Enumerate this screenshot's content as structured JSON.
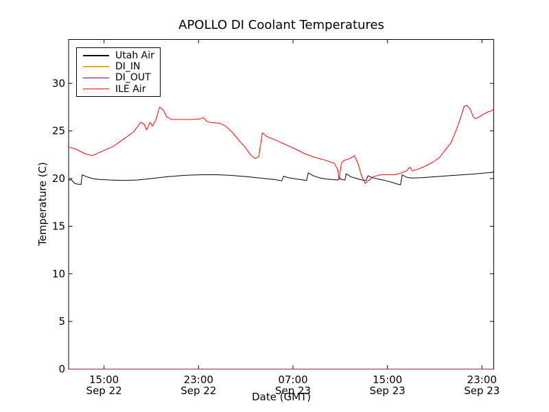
{
  "chart_data": {
    "type": "line",
    "title": "APOLLO DI Coolant Temperatures",
    "xlabel": "Date (GMT)",
    "ylabel": "Temperature (C)",
    "x_unit": "hours since Sep 22 12:00 GMT",
    "xlim": [
      0,
      36
    ],
    "ylim": [
      0,
      34.6
    ],
    "grid": false,
    "legend_position": "upper left",
    "frame_color": "#000000",
    "background": "#ffffff",
    "yticks": [
      0,
      5,
      10,
      15,
      20,
      25,
      30
    ],
    "xticks": [
      {
        "hour": 3,
        "time": "15:00",
        "date": "Sep 22"
      },
      {
        "hour": 11,
        "time": "23:00",
        "date": "Sep 22"
      },
      {
        "hour": 19,
        "time": "07:00",
        "date": "Sep 23"
      },
      {
        "hour": 27,
        "time": "15:00",
        "date": "Sep 23"
      },
      {
        "hour": 35,
        "time": "23:00",
        "date": "Sep 23"
      }
    ],
    "series": [
      {
        "name": "Utah Air",
        "color": "#000000",
        "opacity": 1,
        "points": [
          [
            0,
            19.8
          ],
          [
            0.2,
            19.9
          ],
          [
            0.5,
            19.5
          ],
          [
            0.8,
            19.4
          ],
          [
            1.05,
            19.4
          ],
          [
            1.15,
            20.4
          ],
          [
            1.5,
            20.2
          ],
          [
            2,
            20
          ],
          [
            2.6,
            19.9
          ],
          [
            3.5,
            19.85
          ],
          [
            4.6,
            19.8
          ],
          [
            5.8,
            19.85
          ],
          [
            7,
            20
          ],
          [
            8.4,
            20.2
          ],
          [
            9.9,
            20.35
          ],
          [
            11.3,
            20.4
          ],
          [
            12.5,
            20.4
          ],
          [
            13.6,
            20.35
          ],
          [
            15.1,
            20.2
          ],
          [
            16.6,
            20
          ],
          [
            17.4,
            19.9
          ],
          [
            17.9,
            19.8
          ],
          [
            18.05,
            19.75
          ],
          [
            18.2,
            20.25
          ],
          [
            18.6,
            20.1
          ],
          [
            19.3,
            19.95
          ],
          [
            19.9,
            19.85
          ],
          [
            20.15,
            19.8
          ],
          [
            20.3,
            20.6
          ],
          [
            20.7,
            20.3
          ],
          [
            21.2,
            20.1
          ],
          [
            21.8,
            19.95
          ],
          [
            22.3,
            19.9
          ],
          [
            22.75,
            19.85
          ],
          [
            23,
            20
          ],
          [
            23.15,
            19.9
          ],
          [
            23.4,
            19.85
          ],
          [
            23.5,
            20.5
          ],
          [
            23.9,
            20.2
          ],
          [
            24.4,
            20
          ],
          [
            24.85,
            19.85
          ],
          [
            25.2,
            19.8
          ],
          [
            25.35,
            20.3
          ],
          [
            25.7,
            20.1
          ],
          [
            26.2,
            19.95
          ],
          [
            26.8,
            19.8
          ],
          [
            27.4,
            19.6
          ],
          [
            27.9,
            19.4
          ],
          [
            28.1,
            19.35
          ],
          [
            28.25,
            20.4
          ],
          [
            28.6,
            20.15
          ],
          [
            29,
            20.05
          ],
          [
            29.9,
            20.1
          ],
          [
            31.1,
            20.2
          ],
          [
            32.2,
            20.3
          ],
          [
            33.4,
            20.4
          ],
          [
            34.5,
            20.5
          ],
          [
            35.4,
            20.6
          ],
          [
            35.9,
            20.65
          ],
          [
            36,
            20.8
          ]
        ]
      },
      {
        "name": "DI_IN",
        "color": "#ffa500",
        "opacity": 0.55,
        "points": [
          [
            0,
            0
          ],
          [
            36,
            0
          ]
        ]
      },
      {
        "name": "DI_OUT",
        "color": "#800080",
        "opacity": 0.55,
        "points": [
          [
            0,
            0
          ],
          [
            36,
            0
          ]
        ]
      },
      {
        "name": "ILE Air",
        "color": "#ff0000",
        "opacity": 1,
        "points": [
          [
            0,
            23.3
          ],
          [
            0.6,
            23.1
          ],
          [
            1.4,
            22.6
          ],
          [
            2,
            22.4
          ],
          [
            2.9,
            22.9
          ],
          [
            3.8,
            23.4
          ],
          [
            4.6,
            24.1
          ],
          [
            5.5,
            24.9
          ],
          [
            6.1,
            25.9
          ],
          [
            6.4,
            25.7
          ],
          [
            6.6,
            25.1
          ],
          [
            6.9,
            25.9
          ],
          [
            7.1,
            25.5
          ],
          [
            7.4,
            26.2
          ],
          [
            7.7,
            27.5
          ],
          [
            8,
            27.2
          ],
          [
            8.3,
            26.5
          ],
          [
            8.7,
            26.2
          ],
          [
            9.6,
            26.2
          ],
          [
            10.4,
            26.2
          ],
          [
            11.1,
            26.25
          ],
          [
            11.4,
            26.4
          ],
          [
            11.7,
            26
          ],
          [
            12,
            25.9
          ],
          [
            12.8,
            25.8
          ],
          [
            13.3,
            25.5
          ],
          [
            13.9,
            24.8
          ],
          [
            14.5,
            23.9
          ],
          [
            15,
            23.2
          ],
          [
            15.4,
            22.5
          ],
          [
            15.8,
            22.1
          ],
          [
            16.1,
            22.3
          ],
          [
            16.4,
            24.8
          ],
          [
            16.8,
            24.4
          ],
          [
            17.4,
            24.1
          ],
          [
            18.3,
            23.6
          ],
          [
            19.2,
            23.1
          ],
          [
            20,
            22.6
          ],
          [
            20.9,
            22.2
          ],
          [
            21.8,
            21.9
          ],
          [
            22.5,
            21.6
          ],
          [
            22.8,
            20.9
          ],
          [
            22.9,
            19.9
          ],
          [
            23.1,
            21.6
          ],
          [
            23.3,
            21.9
          ],
          [
            23.8,
            22.1
          ],
          [
            24.2,
            22.4
          ],
          [
            24.5,
            21.6
          ],
          [
            24.8,
            20.3
          ],
          [
            25.1,
            19.5
          ],
          [
            25.4,
            19.8
          ],
          [
            25.8,
            20.2
          ],
          [
            26.4,
            20.4
          ],
          [
            27,
            20.4
          ],
          [
            27.6,
            20.4
          ],
          [
            28.2,
            20.6
          ],
          [
            28.6,
            20.8
          ],
          [
            28.9,
            21.2
          ],
          [
            29.1,
            20.8
          ],
          [
            29.6,
            21
          ],
          [
            30.2,
            21.3
          ],
          [
            30.8,
            21.7
          ],
          [
            31.4,
            22.2
          ],
          [
            31.9,
            23
          ],
          [
            32.4,
            23.8
          ],
          [
            32.7,
            24.7
          ],
          [
            33,
            25.7
          ],
          [
            33.3,
            26.8
          ],
          [
            33.5,
            27.6
          ],
          [
            33.7,
            27.7
          ],
          [
            34,
            27.3
          ],
          [
            34.3,
            26.4
          ],
          [
            34.5,
            26.3
          ],
          [
            34.8,
            26.5
          ],
          [
            35.2,
            26.8
          ],
          [
            35.5,
            27
          ],
          [
            35.8,
            27.1
          ],
          [
            36,
            27.3
          ]
        ]
      }
    ]
  }
}
